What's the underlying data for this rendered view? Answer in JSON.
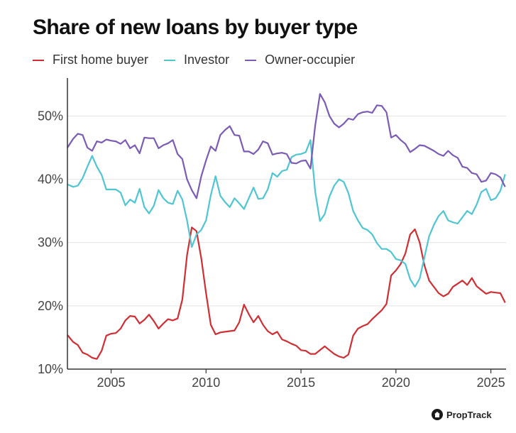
{
  "chart_data": {
    "type": "line",
    "title": "Share of new loans by buyer type",
    "xlabel": "",
    "ylabel": "",
    "xlim": [
      2002.7,
      2025.8
    ],
    "ylim": [
      10,
      56
    ],
    "xticks": [
      "2005",
      "2010",
      "2015",
      "2020",
      "2025"
    ],
    "yticks": [
      "10%",
      "20%",
      "30%",
      "40%",
      "50%"
    ],
    "grid": "horizontal",
    "legend": "top-left",
    "series": [
      {
        "name": "First home buyer",
        "color": "#d12e34",
        "points": [
          [
            2002.7,
            15.4
          ],
          [
            2003.0,
            14.3
          ],
          [
            2003.25,
            13.8
          ],
          [
            2003.5,
            12.6
          ],
          [
            2003.75,
            12.3
          ],
          [
            2004.0,
            11.8
          ],
          [
            2004.25,
            11.6
          ],
          [
            2004.5,
            12.9
          ],
          [
            2004.75,
            15.3
          ],
          [
            2005.0,
            15.6
          ],
          [
            2005.25,
            15.7
          ],
          [
            2005.5,
            16.4
          ],
          [
            2005.75,
            17.7
          ],
          [
            2006.0,
            18.4
          ],
          [
            2006.25,
            18.3
          ],
          [
            2006.5,
            17.2
          ],
          [
            2006.75,
            17.8
          ],
          [
            2007.0,
            18.6
          ],
          [
            2007.25,
            17.6
          ],
          [
            2007.5,
            16.4
          ],
          [
            2007.75,
            17.2
          ],
          [
            2008.0,
            17.9
          ],
          [
            2008.25,
            17.7
          ],
          [
            2008.5,
            18.0
          ],
          [
            2008.75,
            21.0
          ],
          [
            2009.0,
            28.0
          ],
          [
            2009.25,
            32.4
          ],
          [
            2009.5,
            31.8
          ],
          [
            2009.75,
            27.5
          ],
          [
            2010.0,
            22.0
          ],
          [
            2010.25,
            17.0
          ],
          [
            2010.5,
            15.5
          ],
          [
            2010.75,
            15.8
          ],
          [
            2011.0,
            15.9
          ],
          [
            2011.25,
            16.0
          ],
          [
            2011.5,
            16.1
          ],
          [
            2011.75,
            17.4
          ],
          [
            2012.0,
            20.2
          ],
          [
            2012.25,
            18.7
          ],
          [
            2012.5,
            17.4
          ],
          [
            2012.75,
            18.4
          ],
          [
            2013.0,
            17.0
          ],
          [
            2013.25,
            16.0
          ],
          [
            2013.5,
            15.5
          ],
          [
            2013.75,
            15.9
          ],
          [
            2014.0,
            14.7
          ],
          [
            2014.25,
            14.4
          ],
          [
            2014.5,
            14.0
          ],
          [
            2014.75,
            13.7
          ],
          [
            2015.0,
            13.0
          ],
          [
            2015.25,
            12.9
          ],
          [
            2015.5,
            12.4
          ],
          [
            2015.75,
            12.4
          ],
          [
            2016.0,
            13.0
          ],
          [
            2016.25,
            13.6
          ],
          [
            2016.5,
            13.0
          ],
          [
            2016.75,
            12.4
          ],
          [
            2017.0,
            12.0
          ],
          [
            2017.25,
            11.8
          ],
          [
            2017.5,
            12.3
          ],
          [
            2017.75,
            15.3
          ],
          [
            2018.0,
            16.4
          ],
          [
            2018.25,
            16.8
          ],
          [
            2018.5,
            17.1
          ],
          [
            2018.75,
            17.9
          ],
          [
            2019.0,
            18.6
          ],
          [
            2019.25,
            19.3
          ],
          [
            2019.5,
            20.3
          ],
          [
            2019.75,
            24.8
          ],
          [
            2020.0,
            25.6
          ],
          [
            2020.25,
            26.6
          ],
          [
            2020.5,
            28.3
          ],
          [
            2020.75,
            31.3
          ],
          [
            2021.0,
            32.1
          ],
          [
            2021.25,
            30.0
          ],
          [
            2021.5,
            26.4
          ],
          [
            2021.75,
            24.0
          ],
          [
            2022.0,
            23.0
          ],
          [
            2022.25,
            22.0
          ],
          [
            2022.5,
            21.5
          ],
          [
            2022.75,
            21.9
          ],
          [
            2023.0,
            23.0
          ],
          [
            2023.25,
            23.5
          ],
          [
            2023.5,
            24.0
          ],
          [
            2023.75,
            23.3
          ],
          [
            2024.0,
            24.4
          ],
          [
            2024.25,
            23.1
          ],
          [
            2024.5,
            22.5
          ],
          [
            2024.75,
            21.9
          ],
          [
            2025.0,
            22.2
          ],
          [
            2025.25,
            22.1
          ],
          [
            2025.5,
            22.0
          ],
          [
            2025.75,
            20.5
          ]
        ]
      },
      {
        "name": "Investor",
        "color": "#4fc6d2",
        "points": [
          [
            2002.7,
            39.2
          ],
          [
            2003.0,
            38.8
          ],
          [
            2003.25,
            39.0
          ],
          [
            2003.5,
            40.2
          ],
          [
            2003.75,
            42.0
          ],
          [
            2004.0,
            43.7
          ],
          [
            2004.25,
            42.0
          ],
          [
            2004.5,
            40.7
          ],
          [
            2004.75,
            38.4
          ],
          [
            2005.0,
            38.4
          ],
          [
            2005.25,
            38.4
          ],
          [
            2005.5,
            37.9
          ],
          [
            2005.75,
            35.9
          ],
          [
            2006.0,
            36.8
          ],
          [
            2006.25,
            36.3
          ],
          [
            2006.5,
            38.5
          ],
          [
            2006.75,
            35.6
          ],
          [
            2007.0,
            34.6
          ],
          [
            2007.25,
            35.8
          ],
          [
            2007.5,
            38.3
          ],
          [
            2007.75,
            37.0
          ],
          [
            2008.0,
            36.3
          ],
          [
            2008.25,
            36.1
          ],
          [
            2008.5,
            38.2
          ],
          [
            2008.75,
            36.8
          ],
          [
            2009.0,
            33.5
          ],
          [
            2009.25,
            29.3
          ],
          [
            2009.5,
            31.3
          ],
          [
            2009.75,
            32.0
          ],
          [
            2010.0,
            33.5
          ],
          [
            2010.25,
            37.5
          ],
          [
            2010.5,
            40.5
          ],
          [
            2010.75,
            37.4
          ],
          [
            2011.0,
            36.4
          ],
          [
            2011.25,
            35.6
          ],
          [
            2011.5,
            37.0
          ],
          [
            2011.75,
            36.2
          ],
          [
            2012.0,
            35.3
          ],
          [
            2012.25,
            37.0
          ],
          [
            2012.5,
            38.7
          ],
          [
            2012.75,
            36.9
          ],
          [
            2013.0,
            37.0
          ],
          [
            2013.25,
            38.4
          ],
          [
            2013.5,
            41.0
          ],
          [
            2013.75,
            40.4
          ],
          [
            2014.0,
            41.3
          ],
          [
            2014.25,
            41.5
          ],
          [
            2014.5,
            43.5
          ],
          [
            2014.75,
            43.9
          ],
          [
            2015.0,
            44.0
          ],
          [
            2015.25,
            44.3
          ],
          [
            2015.5,
            46.2
          ],
          [
            2015.75,
            38.0
          ],
          [
            2016.0,
            33.4
          ],
          [
            2016.25,
            34.5
          ],
          [
            2016.5,
            37.3
          ],
          [
            2016.75,
            39.0
          ],
          [
            2017.0,
            40.0
          ],
          [
            2017.25,
            39.6
          ],
          [
            2017.5,
            37.8
          ],
          [
            2017.75,
            35.0
          ],
          [
            2018.0,
            33.5
          ],
          [
            2018.25,
            32.3
          ],
          [
            2018.5,
            32.0
          ],
          [
            2018.75,
            31.3
          ],
          [
            2019.0,
            29.9
          ],
          [
            2019.25,
            29.0
          ],
          [
            2019.5,
            29.0
          ],
          [
            2019.75,
            28.5
          ],
          [
            2020.0,
            27.4
          ],
          [
            2020.25,
            27.2
          ],
          [
            2020.5,
            26.6
          ],
          [
            2020.75,
            24.2
          ],
          [
            2021.0,
            23.0
          ],
          [
            2021.25,
            24.3
          ],
          [
            2021.5,
            27.7
          ],
          [
            2021.75,
            31.0
          ],
          [
            2022.0,
            32.8
          ],
          [
            2022.25,
            34.2
          ],
          [
            2022.5,
            35.0
          ],
          [
            2022.75,
            33.5
          ],
          [
            2023.0,
            33.2
          ],
          [
            2023.25,
            33.0
          ],
          [
            2023.5,
            34.0
          ],
          [
            2023.75,
            35.0
          ],
          [
            2024.0,
            34.5
          ],
          [
            2024.25,
            36.0
          ],
          [
            2024.5,
            38.0
          ],
          [
            2024.75,
            38.5
          ],
          [
            2025.0,
            36.7
          ],
          [
            2025.25,
            37.0
          ],
          [
            2025.5,
            38.2
          ],
          [
            2025.75,
            40.8
          ]
        ]
      },
      {
        "name": "Owner-occupier",
        "color": "#7b5bb5",
        "points": [
          [
            2002.7,
            45.0
          ],
          [
            2003.0,
            46.4
          ],
          [
            2003.25,
            47.2
          ],
          [
            2003.5,
            47.0
          ],
          [
            2003.75,
            45.0
          ],
          [
            2004.0,
            44.5
          ],
          [
            2004.25,
            46.0
          ],
          [
            2004.5,
            45.8
          ],
          [
            2004.75,
            46.3
          ],
          [
            2005.0,
            46.1
          ],
          [
            2005.25,
            46.0
          ],
          [
            2005.5,
            45.6
          ],
          [
            2005.75,
            46.2
          ],
          [
            2006.0,
            44.9
          ],
          [
            2006.25,
            45.4
          ],
          [
            2006.5,
            44.1
          ],
          [
            2006.75,
            46.6
          ],
          [
            2007.0,
            46.5
          ],
          [
            2007.25,
            46.5
          ],
          [
            2007.5,
            44.9
          ],
          [
            2007.75,
            45.4
          ],
          [
            2008.0,
            45.7
          ],
          [
            2008.25,
            46.2
          ],
          [
            2008.5,
            44.0
          ],
          [
            2008.75,
            43.2
          ],
          [
            2009.0,
            40.0
          ],
          [
            2009.25,
            38.3
          ],
          [
            2009.5,
            37.0
          ],
          [
            2009.75,
            40.5
          ],
          [
            2010.0,
            43.0
          ],
          [
            2010.25,
            45.2
          ],
          [
            2010.5,
            44.5
          ],
          [
            2010.75,
            47.0
          ],
          [
            2011.0,
            47.8
          ],
          [
            2011.25,
            48.4
          ],
          [
            2011.5,
            47.0
          ],
          [
            2011.75,
            46.9
          ],
          [
            2012.0,
            44.4
          ],
          [
            2012.25,
            44.4
          ],
          [
            2012.5,
            44.0
          ],
          [
            2012.75,
            44.7
          ],
          [
            2013.0,
            46.0
          ],
          [
            2013.25,
            45.7
          ],
          [
            2013.5,
            43.9
          ],
          [
            2013.75,
            44.1
          ],
          [
            2014.0,
            44.2
          ],
          [
            2014.25,
            44.0
          ],
          [
            2014.5,
            42.6
          ],
          [
            2014.75,
            42.5
          ],
          [
            2015.0,
            42.9
          ],
          [
            2015.25,
            43.0
          ],
          [
            2015.5,
            41.7
          ],
          [
            2015.75,
            48.5
          ],
          [
            2016.0,
            53.5
          ],
          [
            2016.25,
            52.2
          ],
          [
            2016.5,
            50.0
          ],
          [
            2016.75,
            48.8
          ],
          [
            2017.0,
            48.2
          ],
          [
            2017.25,
            48.8
          ],
          [
            2017.5,
            49.6
          ],
          [
            2017.75,
            49.4
          ],
          [
            2018.0,
            50.3
          ],
          [
            2018.25,
            50.6
          ],
          [
            2018.5,
            50.7
          ],
          [
            2018.75,
            50.5
          ],
          [
            2019.0,
            51.7
          ],
          [
            2019.25,
            51.6
          ],
          [
            2019.5,
            50.6
          ],
          [
            2019.75,
            46.6
          ],
          [
            2020.0,
            47.0
          ],
          [
            2020.25,
            46.2
          ],
          [
            2020.5,
            45.6
          ],
          [
            2020.75,
            44.3
          ],
          [
            2021.0,
            44.8
          ],
          [
            2021.25,
            45.4
          ],
          [
            2021.5,
            45.3
          ],
          [
            2021.75,
            44.9
          ],
          [
            2022.0,
            44.5
          ],
          [
            2022.25,
            44.0
          ],
          [
            2022.5,
            43.7
          ],
          [
            2022.75,
            44.5
          ],
          [
            2023.0,
            43.8
          ],
          [
            2023.25,
            43.4
          ],
          [
            2023.5,
            42.0
          ],
          [
            2023.75,
            41.8
          ],
          [
            2024.0,
            41.0
          ],
          [
            2024.25,
            40.8
          ],
          [
            2024.5,
            39.6
          ],
          [
            2024.75,
            39.8
          ],
          [
            2025.0,
            41.0
          ],
          [
            2025.25,
            40.8
          ],
          [
            2025.5,
            40.3
          ],
          [
            2025.75,
            38.8
          ]
        ]
      }
    ]
  },
  "brand": {
    "name": "PropTrack",
    "icon": "house-icon"
  }
}
